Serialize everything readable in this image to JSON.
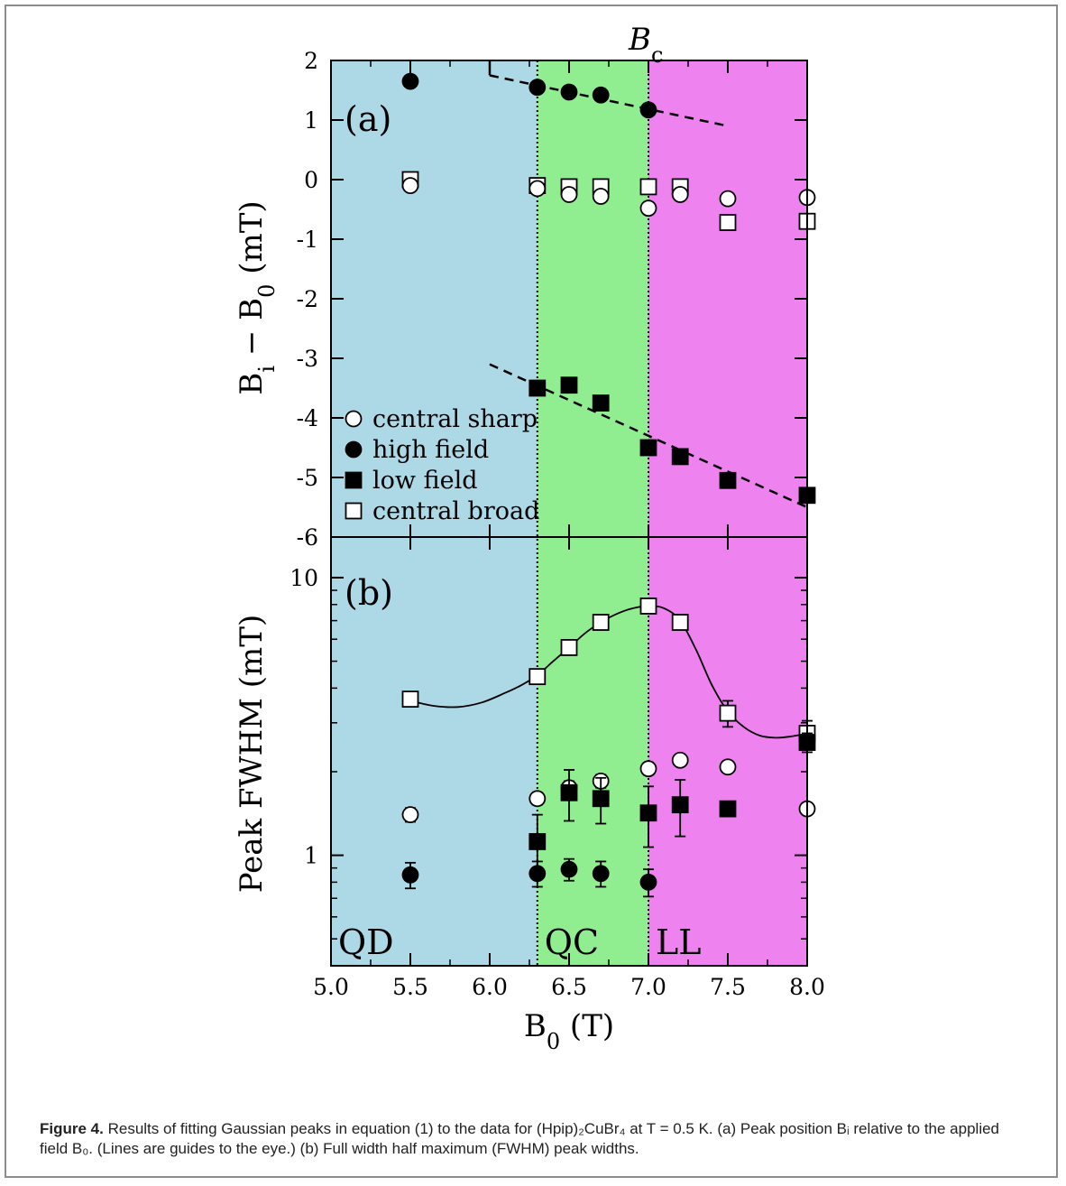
{
  "chart_data": [
    {
      "panel_label": "(a)",
      "type": "scatter",
      "xlim": [
        5.0,
        8.0
      ],
      "ylim": [
        -6,
        2
      ],
      "x_ticks": [
        5.0,
        5.5,
        6.0,
        6.5,
        7.0,
        7.5,
        8.0
      ],
      "x_tick_labels": [
        "5.0",
        "5.5",
        "6.0",
        "6.5",
        "7.0",
        "7.5",
        "8.0"
      ],
      "y_ticks": [
        -6,
        -5,
        -4,
        -3,
        -2,
        -1,
        0,
        1,
        2
      ],
      "y_tick_labels": [
        "-6",
        "-5",
        "-4",
        "-3",
        "-2",
        "-1",
        "0",
        "1",
        "2"
      ],
      "ylabel": "B_i − B_0 (mT)",
      "top_label": "B_c",
      "legend_position": "left-bottom",
      "series": [
        {
          "name": "central sharp",
          "marker": "open-circle",
          "x": [
            5.5,
            6.3,
            6.5,
            6.7,
            7.0,
            7.2,
            7.5,
            8.0
          ],
          "y": [
            -0.1,
            -0.15,
            -0.25,
            -0.28,
            -0.48,
            -0.25,
            -0.32,
            -0.3
          ]
        },
        {
          "name": "high field",
          "marker": "filled-circle",
          "x": [
            5.5,
            6.3,
            6.5,
            6.7,
            7.0
          ],
          "y": [
            1.65,
            1.55,
            1.47,
            1.42,
            1.17
          ]
        },
        {
          "name": "low field",
          "marker": "filled-square",
          "x": [
            6.3,
            6.5,
            6.7,
            7.0,
            7.2,
            7.5,
            8.0
          ],
          "y": [
            -3.5,
            -3.45,
            -3.75,
            -4.5,
            -4.65,
            -5.05,
            -5.3
          ]
        },
        {
          "name": "central broad",
          "marker": "open-square",
          "x": [
            5.5,
            6.3,
            6.5,
            6.7,
            7.0,
            7.2,
            7.5,
            8.0
          ],
          "y": [
            0.0,
            -0.1,
            -0.12,
            -0.12,
            -0.12,
            -0.12,
            -0.72,
            -0.7
          ]
        }
      ],
      "guide_lines": [
        {
          "style": "dashed",
          "x": [
            6.0,
            7.5
          ],
          "y": [
            1.75,
            0.9
          ]
        },
        {
          "style": "dashed",
          "x": [
            6.0,
            8.0
          ],
          "y": [
            -3.1,
            -5.5
          ]
        },
        {
          "style": "solid",
          "x": [
            6.0,
            6.0
          ],
          "y": [
            2.0,
            1.75
          ]
        }
      ]
    },
    {
      "panel_label": "(b)",
      "type": "scatter",
      "yscale": "log",
      "xlim": [
        5.0,
        8.0
      ],
      "ylim": [
        0.4,
        14
      ],
      "x_ticks": [
        5.0,
        5.5,
        6.0,
        6.5,
        7.0,
        7.5,
        8.0
      ],
      "x_tick_labels": [
        "5.0",
        "5.5",
        "6.0",
        "6.5",
        "7.0",
        "7.5",
        "8.0"
      ],
      "y_major_ticks": [
        1,
        10
      ],
      "y_tick_labels": [
        "1",
        "10"
      ],
      "xlabel": "B_0 (T)",
      "ylabel": "Peak FWHM (mT)",
      "series": [
        {
          "name": "central sharp",
          "marker": "open-circle",
          "x": [
            5.5,
            6.3,
            6.5,
            6.7,
            7.0,
            7.2,
            7.5,
            8.0
          ],
          "y": [
            1.4,
            1.6,
            1.75,
            1.85,
            2.05,
            2.2,
            2.08,
            1.47
          ],
          "err": [
            0.08,
            0.08,
            0.1,
            0.1,
            0.1,
            0.1,
            0.08,
            0.06
          ]
        },
        {
          "name": "high field",
          "marker": "filled-circle",
          "x": [
            5.5,
            6.3,
            6.5,
            6.7,
            7.0
          ],
          "y": [
            0.85,
            0.86,
            0.89,
            0.86,
            0.8
          ],
          "err": [
            0.09,
            0.09,
            0.08,
            0.09,
            0.09
          ]
        },
        {
          "name": "low field",
          "marker": "filled-square",
          "x": [
            6.3,
            6.5,
            6.7,
            7.0,
            7.2,
            7.5,
            8.0
          ],
          "y": [
            1.12,
            1.68,
            1.6,
            1.42,
            1.52,
            1.47,
            2.55
          ],
          "err": [
            0.28,
            0.35,
            0.3,
            0.35,
            0.35,
            0.08,
            0.2
          ]
        },
        {
          "name": "central broad",
          "marker": "open-square",
          "x": [
            5.5,
            6.3,
            6.5,
            6.7,
            7.0,
            7.2,
            7.5,
            8.0
          ],
          "y": [
            3.65,
            4.4,
            5.6,
            6.9,
            7.9,
            6.9,
            3.25,
            2.75
          ],
          "err": [
            0.08,
            0.1,
            0.1,
            0.1,
            0.1,
            0.1,
            0.35,
            0.3
          ]
        }
      ],
      "fit_curve": {
        "style": "solid",
        "x": [
          5.5,
          5.65,
          5.8,
          5.95,
          6.1,
          6.2,
          6.3,
          6.4,
          6.5,
          6.6,
          6.7,
          6.8,
          6.9,
          7.0,
          7.1,
          7.2,
          7.3,
          7.4,
          7.5,
          7.6,
          7.7,
          7.8,
          7.9,
          8.0
        ],
        "y": [
          3.6,
          3.45,
          3.42,
          3.55,
          3.85,
          4.1,
          4.45,
          5.0,
          5.6,
          6.3,
          6.9,
          7.4,
          7.75,
          7.9,
          7.75,
          7.0,
          5.5,
          4.1,
          3.3,
          2.9,
          2.7,
          2.65,
          2.68,
          2.75
        ]
      }
    }
  ],
  "regions": [
    {
      "label": "QD",
      "x_range": [
        5.0,
        6.3
      ],
      "color": "#add8e6"
    },
    {
      "label": "QC",
      "x_range": [
        6.3,
        7.0
      ],
      "color": "#90ee90"
    },
    {
      "label": "LL",
      "x_range": [
        7.0,
        8.0
      ],
      "color": "#ee82ee"
    }
  ],
  "caption": {
    "label": "Figure 4.",
    "text": " Results of fitting Gaussian peaks in equation (1) to the data for (Hpip)₂CuBr₄ at T = 0.5 K. (a) Peak position Bᵢ relative to the applied field B₀. (Lines are guides to the eye.) (b) Full width half maximum (FWHM) peak widths."
  }
}
